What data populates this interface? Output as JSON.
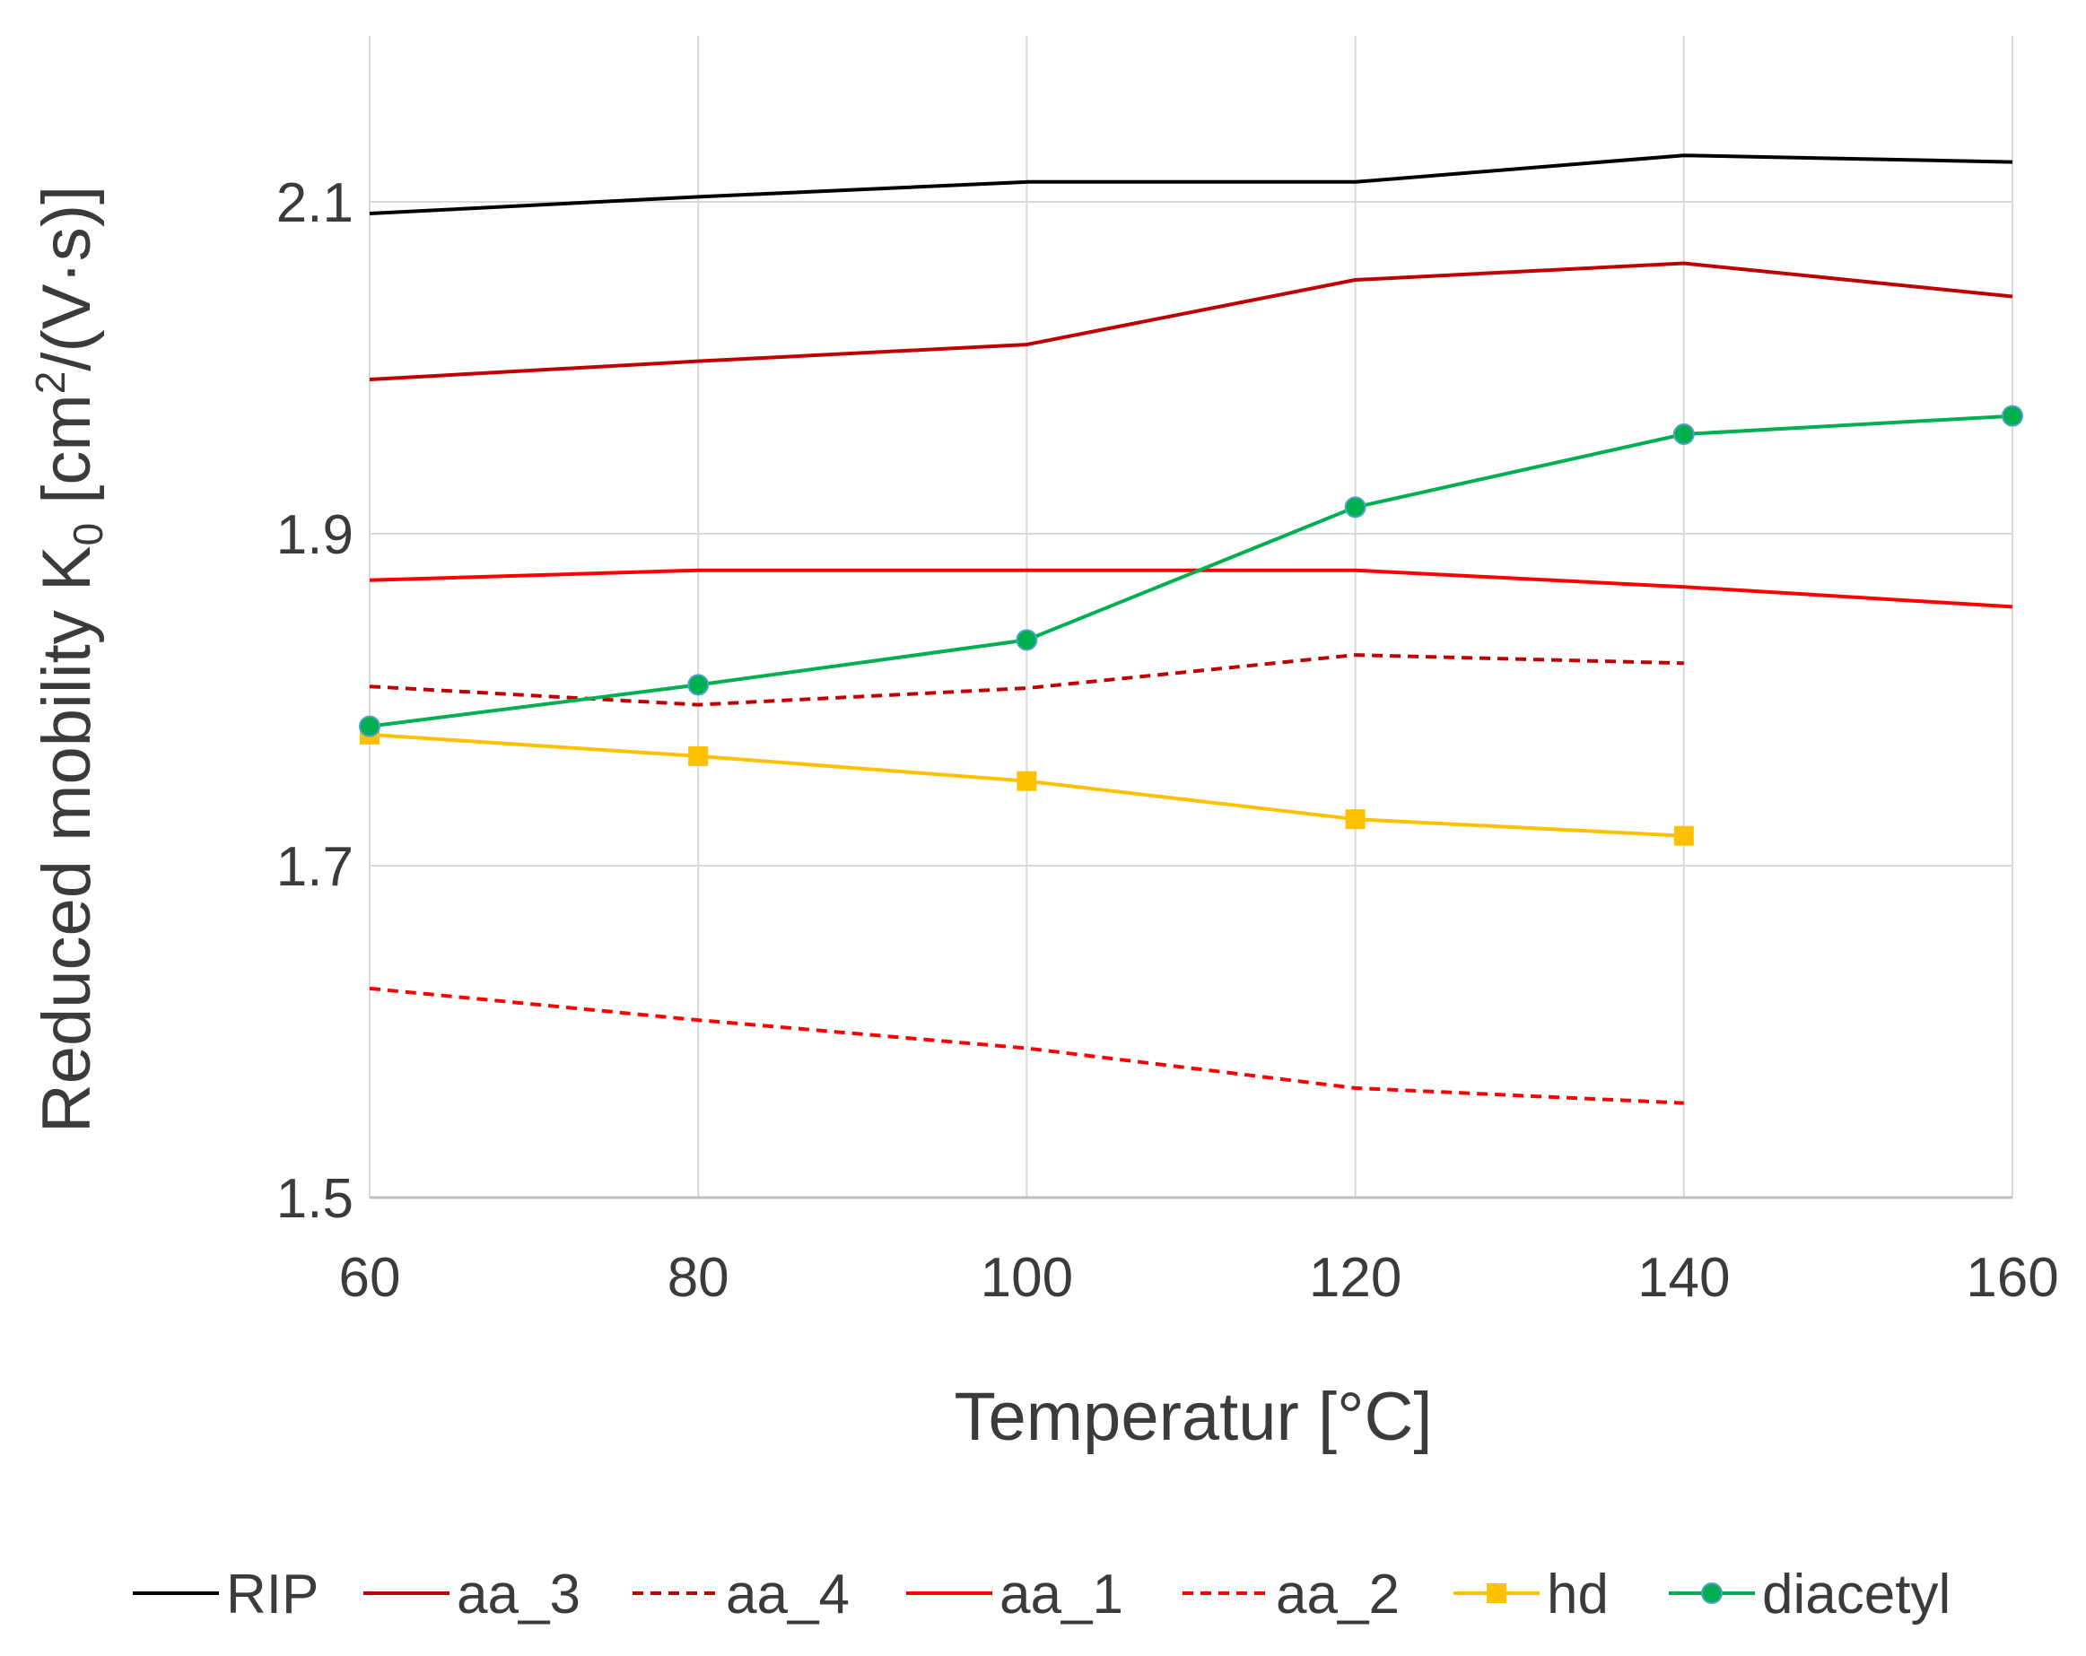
{
  "chart_data": {
    "type": "line",
    "title": "",
    "xlabel": "Temperatur [°C]",
    "ylabel_parts": {
      "pre": "Reduced mobility K",
      "sub": "0",
      "mid": " [cm",
      "sup": "2",
      "post": "/(V·s)]"
    },
    "xlim": [
      60,
      160
    ],
    "ylim": [
      1.5,
      2.2
    ],
    "x_ticks": [
      60,
      80,
      100,
      120,
      140,
      160
    ],
    "x_tick_labels": [
      "60",
      "80",
      "100",
      "120",
      "140",
      "160"
    ],
    "y_ticks": [
      1.5,
      1.7,
      1.9,
      2.1
    ],
    "y_tick_labels": [
      "1.5",
      "1.7",
      "1.9",
      "2.1"
    ],
    "y_gridlines": [
      1.7,
      1.9,
      2.1
    ],
    "legend_position": "bottom",
    "series": [
      {
        "name": "RIP",
        "color": "#000000",
        "dash": "solid",
        "marker": "none",
        "x": [
          60,
          80,
          100,
          120,
          140,
          160
        ],
        "values": [
          2.093,
          2.103,
          2.112,
          2.112,
          2.128,
          2.124
        ]
      },
      {
        "name": "aa_3",
        "color": "#c00000",
        "dash": "solid",
        "marker": "none",
        "x": [
          60,
          80,
          100,
          120,
          140,
          160
        ],
        "values": [
          1.993,
          2.004,
          2.014,
          2.053,
          2.063,
          2.043
        ]
      },
      {
        "name": "aa_4",
        "color": "#c00000",
        "dash": "dashed",
        "marker": "none",
        "x": [
          60,
          80,
          100,
          120,
          140
        ],
        "values": [
          1.808,
          1.797,
          1.807,
          1.827,
          1.822
        ]
      },
      {
        "name": "aa_1",
        "color": "#ff0000",
        "dash": "solid",
        "marker": "none",
        "x": [
          60,
          80,
          100,
          120,
          140,
          160
        ],
        "values": [
          1.872,
          1.878,
          1.878,
          1.878,
          1.868,
          1.856
        ]
      },
      {
        "name": "aa_2",
        "color": "#ff0000",
        "dash": "dashed",
        "marker": "none",
        "x": [
          60,
          80,
          100,
          120,
          140
        ],
        "values": [
          1.626,
          1.607,
          1.59,
          1.566,
          1.557
        ]
      },
      {
        "name": "hd",
        "color": "#ffc000",
        "dash": "solid",
        "marker": "square",
        "x": [
          60,
          80,
          100,
          120,
          140
        ],
        "values": [
          1.779,
          1.766,
          1.751,
          1.728,
          1.718
        ]
      },
      {
        "name": "diacetyl",
        "color": "#00b050",
        "dash": "solid",
        "marker": "circle",
        "x": [
          60,
          80,
          100,
          120,
          140,
          160
        ],
        "values": [
          1.784,
          1.809,
          1.836,
          1.916,
          1.96,
          1.971
        ]
      }
    ]
  }
}
